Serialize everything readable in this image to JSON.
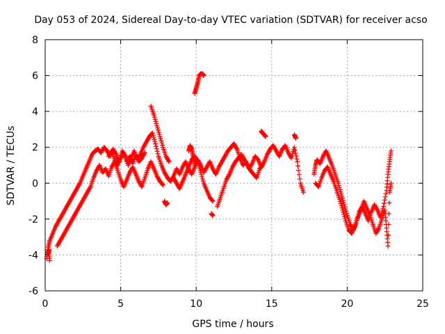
{
  "chart_data": {
    "type": "scatter",
    "title": "Day 053 of 2024, Sidereal Day-to-day VTEC variation (SDTVAR) for receiver acso",
    "xlabel": "GPS time / hours",
    "ylabel": "SDTVAR / TECUs",
    "xlim": [
      0,
      25
    ],
    "ylim": [
      -6,
      8
    ],
    "xticks": [
      0,
      5,
      10,
      15,
      20,
      25
    ],
    "yticks": [
      -6,
      -4,
      -2,
      0,
      2,
      4,
      6,
      8
    ],
    "marker": "+",
    "color": "#ff0000",
    "grid": true,
    "series": [
      {
        "name": "SDTVAR",
        "segments": [
          [
            [
              0.1,
              -4.2
            ],
            [
              0.2,
              -3.6
            ],
            [
              0.3,
              -3.2
            ],
            [
              0.5,
              -2.8
            ],
            [
              0.7,
              -2.4
            ],
            [
              0.9,
              -2.1
            ],
            [
              1.1,
              -1.8
            ],
            [
              1.3,
              -1.5
            ],
            [
              1.5,
              -1.2
            ],
            [
              1.7,
              -0.9
            ],
            [
              1.9,
              -0.6
            ],
            [
              2.1,
              -0.3
            ],
            [
              2.3,
              0.0
            ],
            [
              2.5,
              0.4
            ],
            [
              2.7,
              0.8
            ],
            [
              2.9,
              1.2
            ],
            [
              3.1,
              1.6
            ],
            [
              3.3,
              1.8
            ],
            [
              3.5,
              1.9
            ],
            [
              3.7,
              1.7
            ],
            [
              3.9,
              2.0
            ],
            [
              4.1,
              1.8
            ],
            [
              4.3,
              1.5
            ],
            [
              4.5,
              1.9
            ],
            [
              4.7,
              1.6
            ],
            [
              4.9,
              1.2
            ],
            [
              5.1,
              1.8
            ],
            [
              5.3,
              1.5
            ],
            [
              5.5,
              1.0
            ],
            [
              5.7,
              1.4
            ],
            [
              5.9,
              1.8
            ],
            [
              6.1,
              1.3
            ],
            [
              6.3,
              1.6
            ],
            [
              6.5,
              2.0
            ],
            [
              6.7,
              2.3
            ],
            [
              6.9,
              2.6
            ],
            [
              7.1,
              2.8
            ],
            [
              7.3,
              2.2
            ],
            [
              7.5,
              1.5
            ],
            [
              7.7,
              1.0
            ],
            [
              7.9,
              0.6
            ],
            [
              8.1,
              0.3
            ],
            [
              8.3,
              0.1
            ],
            [
              8.5,
              0.4
            ],
            [
              8.7,
              0.8
            ],
            [
              8.9,
              0.5
            ],
            [
              9.1,
              0.9
            ],
            [
              9.3,
              1.2
            ],
            [
              9.5,
              0.8
            ],
            [
              9.7,
              0.5
            ],
            [
              9.9,
              0.9
            ],
            [
              10.1,
              1.3
            ],
            [
              10.3,
              1.0
            ],
            [
              10.5,
              0.6
            ],
            [
              10.7,
              0.9
            ],
            [
              10.9,
              1.2
            ],
            [
              11.1,
              0.8
            ],
            [
              11.3,
              0.5
            ],
            [
              11.5,
              0.9
            ],
            [
              11.7,
              1.2
            ],
            [
              11.9,
              1.5
            ],
            [
              12.1,
              1.8
            ],
            [
              12.3,
              2.0
            ],
            [
              12.5,
              2.2
            ],
            [
              12.7,
              1.9
            ],
            [
              12.9,
              1.4
            ],
            [
              13.1,
              1.0
            ],
            [
              13.3,
              1.2
            ],
            [
              13.5,
              0.8
            ],
            [
              13.7,
              1.1
            ],
            [
              13.9,
              1.5
            ],
            [
              14.1,
              1.3
            ],
            [
              14.3,
              0.9
            ],
            [
              14.5,
              1.2
            ],
            [
              14.7,
              1.6
            ],
            [
              14.9,
              1.9
            ],
            [
              15.1,
              2.1
            ],
            [
              15.3,
              1.8
            ],
            [
              15.5,
              1.5
            ],
            [
              15.7,
              1.9
            ],
            [
              15.9,
              2.1
            ],
            [
              16.1,
              1.7
            ],
            [
              16.3,
              1.4
            ],
            [
              16.5,
              2.0
            ],
            [
              16.7,
              1.2
            ],
            [
              16.9,
              0.0
            ],
            [
              17.1,
              -0.5
            ]
          ],
          [
            [
              0.8,
              -3.5
            ],
            [
              1.0,
              -3.2
            ],
            [
              1.2,
              -2.9
            ],
            [
              1.4,
              -2.6
            ],
            [
              1.6,
              -2.3
            ],
            [
              1.8,
              -2.0
            ],
            [
              2.0,
              -1.7
            ],
            [
              2.2,
              -1.4
            ],
            [
              2.4,
              -1.1
            ],
            [
              2.6,
              -0.8
            ],
            [
              2.8,
              -0.5
            ],
            [
              3.0,
              -0.2
            ],
            [
              3.2,
              0.3
            ],
            [
              3.4,
              0.7
            ],
            [
              3.6,
              1.0
            ],
            [
              3.8,
              0.6
            ],
            [
              4.0,
              0.8
            ],
            [
              4.2,
              0.4
            ],
            [
              4.4,
              0.9
            ],
            [
              4.6,
              1.2
            ],
            [
              4.8,
              0.7
            ],
            [
              5.0,
              0.2
            ],
            [
              5.2,
              -0.2
            ],
            [
              5.4,
              0.2
            ],
            [
              5.6,
              0.6
            ],
            [
              5.8,
              0.9
            ],
            [
              6.0,
              0.5
            ],
            [
              6.2,
              0.1
            ],
            [
              6.4,
              -0.2
            ],
            [
              6.6,
              0.3
            ],
            [
              6.8,
              0.8
            ],
            [
              7.0,
              1.2
            ],
            [
              7.2,
              0.8
            ],
            [
              7.4,
              0.4
            ],
            [
              7.6,
              0.1
            ],
            [
              7.8,
              -0.1
            ]
          ],
          [
            [
              4.2,
              1.5
            ],
            [
              4.4,
              1.8
            ],
            [
              4.6,
              1.3
            ],
            [
              4.8,
              1.0
            ],
            [
              5.0,
              1.4
            ],
            [
              5.2,
              1.7
            ],
            [
              5.4,
              1.2
            ],
            [
              5.6,
              1.5
            ],
            [
              5.8,
              1.1
            ],
            [
              6.0,
              1.6
            ],
            [
              6.2,
              1.2
            ],
            [
              6.4,
              1.4
            ],
            [
              6.6,
              1.7
            ]
          ],
          [
            [
              7.0,
              4.3
            ],
            [
              7.2,
              3.8
            ],
            [
              7.4,
              3.2
            ],
            [
              7.6,
              2.6
            ],
            [
              7.8,
              2.0
            ],
            [
              8.0,
              1.5
            ],
            [
              8.2,
              1.2
            ]
          ],
          [
            [
              8.5,
              0.3
            ],
            [
              8.7,
              0.0
            ],
            [
              8.9,
              -0.3
            ],
            [
              9.1,
              0.1
            ],
            [
              9.3,
              0.5
            ],
            [
              9.5,
              0.9
            ],
            [
              9.7,
              1.3
            ],
            [
              9.9,
              1.5
            ],
            [
              10.1,
              1.2
            ],
            [
              10.3,
              0.6
            ],
            [
              10.5,
              0.0
            ],
            [
              10.7,
              -0.4
            ],
            [
              10.9,
              -0.8
            ],
            [
              11.1,
              -1.0
            ]
          ],
          [
            [
              9.5,
              1.8
            ],
            [
              9.6,
              2.1
            ],
            [
              9.7,
              1.9
            ],
            [
              9.8,
              1.5
            ],
            [
              9.9,
              1.0
            ]
          ],
          [
            [
              11.4,
              -1.3
            ],
            [
              11.6,
              -0.8
            ],
            [
              11.8,
              -0.3
            ],
            [
              12.0,
              0.2
            ],
            [
              12.2,
              0.5
            ],
            [
              12.4,
              0.9
            ],
            [
              12.6,
              1.2
            ],
            [
              12.8,
              1.4
            ],
            [
              13.0,
              1.6
            ],
            [
              13.2,
              1.3
            ],
            [
              13.4,
              1.0
            ],
            [
              13.6,
              0.7
            ],
            [
              13.8,
              0.5
            ],
            [
              14.0,
              0.3
            ],
            [
              14.2,
              0.8
            ],
            [
              14.4,
              1.0
            ]
          ],
          [
            [
              9.9,
              5.0
            ],
            [
              10.0,
              5.3
            ],
            [
              10.1,
              5.6
            ],
            [
              10.2,
              6.0
            ],
            [
              10.3,
              6.1
            ],
            [
              10.4,
              6.1
            ],
            [
              10.5,
              6.0
            ]
          ],
          [
            [
              7.9,
              -1.0
            ],
            [
              8.0,
              -1.2
            ],
            [
              8.1,
              -1.1
            ]
          ],
          [
            [
              0.2,
              -3.9
            ],
            [
              0.25,
              -3.7
            ],
            [
              0.3,
              -4.3
            ]
          ],
          [
            [
              14.3,
              2.9
            ],
            [
              14.4,
              2.8
            ],
            [
              14.5,
              2.7
            ],
            [
              14.6,
              2.6
            ]
          ],
          [
            [
              16.5,
              2.7
            ],
            [
              16.6,
              2.5
            ]
          ],
          [
            [
              11.0,
              -1.7
            ],
            [
              11.1,
              -1.8
            ]
          ],
          [
            [
              17.8,
              0.5
            ],
            [
              17.9,
              1.0
            ],
            [
              18.0,
              1.3
            ],
            [
              18.2,
              1.1
            ],
            [
              18.4,
              1.5
            ],
            [
              18.6,
              1.8
            ],
            [
              18.8,
              1.4
            ],
            [
              19.0,
              1.0
            ],
            [
              19.2,
              0.5
            ],
            [
              19.4,
              0.0
            ],
            [
              19.6,
              -0.6
            ],
            [
              19.8,
              -1.2
            ],
            [
              20.0,
              -1.8
            ],
            [
              20.2,
              -2.3
            ],
            [
              20.4,
              -2.6
            ],
            [
              20.6,
              -2.2
            ],
            [
              20.8,
              -1.6
            ],
            [
              21.0,
              -1.3
            ],
            [
              21.2,
              -1.7
            ],
            [
              21.4,
              -2.1
            ],
            [
              21.6,
              -1.6
            ],
            [
              21.8,
              -1.2
            ],
            [
              22.0,
              -1.5
            ],
            [
              22.2,
              -1.9
            ],
            [
              22.4,
              -1.3
            ],
            [
              22.6,
              -0.4
            ],
            [
              22.7,
              0.5
            ],
            [
              22.8,
              1.2
            ],
            [
              22.9,
              1.8
            ]
          ],
          [
            [
              17.9,
              0.0
            ],
            [
              18.1,
              -0.2
            ],
            [
              18.3,
              0.3
            ],
            [
              18.5,
              0.7
            ],
            [
              18.7,
              0.9
            ],
            [
              18.9,
              0.5
            ],
            [
              19.1,
              0.1
            ],
            [
              19.3,
              -0.4
            ],
            [
              19.5,
              -0.9
            ],
            [
              19.7,
              -1.5
            ],
            [
              19.9,
              -2.1
            ],
            [
              20.1,
              -2.6
            ],
            [
              20.3,
              -2.8
            ],
            [
              20.5,
              -2.4
            ],
            [
              20.7,
              -1.9
            ],
            [
              20.9,
              -1.5
            ],
            [
              21.1,
              -1.0
            ],
            [
              21.3,
              -1.4
            ],
            [
              21.5,
              -1.8
            ],
            [
              21.7,
              -2.3
            ],
            [
              21.9,
              -2.8
            ],
            [
              22.1,
              -2.5
            ],
            [
              22.3,
              -2.0
            ],
            [
              22.5,
              -1.5
            ],
            [
              22.6,
              -2.5
            ],
            [
              22.7,
              -3.5
            ],
            [
              22.8,
              -0.5
            ],
            [
              22.9,
              0.0
            ]
          ]
        ]
      }
    ]
  }
}
